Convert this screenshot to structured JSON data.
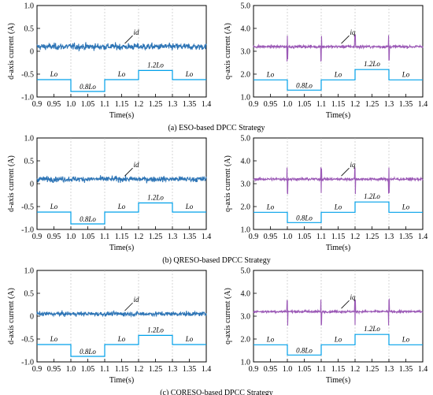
{
  "colors": {
    "d_signal": "#2e75b6",
    "q_signal": "#9b59b6",
    "load_step": "#00a0e9",
    "axis": "#000000"
  },
  "captions": [
    "(a) ESO-based DPCC Strategy",
    "(b) QRESO-based DPCC Strategy",
    "(c) CQRESO-based DPCC Strategy"
  ],
  "chart_data": [
    {
      "type": "line",
      "panel": "a-d",
      "xlabel": "Time(s)",
      "ylabel": "d-axis current (A)",
      "xlim": [
        0.9,
        1.4
      ],
      "ylim": [
        -1.0,
        1.0
      ],
      "xticks": [
        "0.9",
        "0.95",
        "1.0",
        "1.05",
        "1.1",
        "1.15",
        "1.2",
        "1.25",
        "1.3",
        "1.35",
        "1.4"
      ],
      "yticks": [
        "1.0",
        "0.5",
        "0",
        "-0.5",
        "-1.0"
      ],
      "series": [
        {
          "name": "i_d",
          "mean": 0.1,
          "noise": 0.06
        }
      ],
      "load_steps": [
        {
          "x": [
            0.9,
            1.0
          ],
          "y": -0.62
        },
        {
          "x": [
            1.0,
            1.1
          ],
          "y": -0.88
        },
        {
          "x": [
            1.1,
            1.2
          ],
          "y": -0.62
        },
        {
          "x": [
            1.2,
            1.3
          ],
          "y": -0.42
        },
        {
          "x": [
            1.3,
            1.4
          ],
          "y": -0.62
        }
      ],
      "step_labels": [
        "Lo",
        "0.8Lo",
        "Lo",
        "1.2Lo",
        "Lo"
      ],
      "annotation": "id"
    },
    {
      "type": "line",
      "panel": "a-q",
      "xlabel": "Time(s)",
      "ylabel": "q-axis current (A)",
      "xlim": [
        0.9,
        1.4
      ],
      "ylim": [
        1.0,
        5.0
      ],
      "xticks": [
        "0.9",
        "0.95",
        "1.0",
        "1.05",
        "1.1",
        "1.15",
        "1.2",
        "1.25",
        "1.3",
        "1.35",
        "1.4"
      ],
      "yticks": [
        "5.0",
        "4.0",
        "3.0",
        "2.0",
        "1.0"
      ],
      "series": [
        {
          "name": "i_q",
          "mean": 3.2,
          "noise": 0.05
        }
      ],
      "load_steps": [
        {
          "x": [
            0.9,
            1.0
          ],
          "y": 1.75
        },
        {
          "x": [
            1.0,
            1.1
          ],
          "y": 1.3
        },
        {
          "x": [
            1.1,
            1.2
          ],
          "y": 1.75
        },
        {
          "x": [
            1.2,
            1.3
          ],
          "y": 2.2
        },
        {
          "x": [
            1.3,
            1.4
          ],
          "y": 1.75
        }
      ],
      "step_labels": [
        "Lo",
        "0.8Lo",
        "Lo",
        "1.2Lo",
        "Lo"
      ],
      "annotation": "iq"
    },
    {
      "type": "line",
      "panel": "b-d",
      "xlabel": "Time(s)",
      "ylabel": "d-axis current (A)",
      "xlim": [
        0.9,
        1.4
      ],
      "ylim": [
        -1.0,
        1.0
      ],
      "xticks": [
        "0.9",
        "0.95",
        "1.0",
        "1.05",
        "1.1",
        "1.15",
        "1.2",
        "1.25",
        "1.3",
        "1.35",
        "1.4"
      ],
      "yticks": [
        "1.0",
        "0.5",
        "0",
        "-0.5",
        "-1.0"
      ],
      "series": [
        {
          "name": "i_d",
          "mean": 0.1,
          "noise": 0.05
        }
      ],
      "load_steps": [
        {
          "x": [
            0.9,
            1.0
          ],
          "y": -0.62
        },
        {
          "x": [
            1.0,
            1.1
          ],
          "y": -0.88
        },
        {
          "x": [
            1.1,
            1.2
          ],
          "y": -0.62
        },
        {
          "x": [
            1.2,
            1.3
          ],
          "y": -0.42
        },
        {
          "x": [
            1.3,
            1.4
          ],
          "y": -0.62
        }
      ],
      "step_labels": [
        "Lo",
        "0.8Lo",
        "Lo",
        "1.2Lo",
        "Lo"
      ],
      "annotation": "id"
    },
    {
      "type": "line",
      "panel": "b-q",
      "xlabel": "Time(s)",
      "ylabel": "q-axis current (A)",
      "xlim": [
        0.9,
        1.4
      ],
      "ylim": [
        1.0,
        5.0
      ],
      "xticks": [
        "0.9",
        "0.95",
        "1.0",
        "1.05",
        "1.1",
        "1.15",
        "1.2",
        "1.25",
        "1.3",
        "1.35",
        "1.4"
      ],
      "yticks": [
        "5.0",
        "4.0",
        "3.0",
        "2.0",
        "1.0"
      ],
      "series": [
        {
          "name": "i_q",
          "mean": 3.2,
          "noise": 0.05
        }
      ],
      "load_steps": [
        {
          "x": [
            0.9,
            1.0
          ],
          "y": 1.75
        },
        {
          "x": [
            1.0,
            1.1
          ],
          "y": 1.3
        },
        {
          "x": [
            1.1,
            1.2
          ],
          "y": 1.75
        },
        {
          "x": [
            1.2,
            1.3
          ],
          "y": 2.2
        },
        {
          "x": [
            1.3,
            1.4
          ],
          "y": 1.75
        }
      ],
      "step_labels": [
        "Lo",
        "0.8Lo",
        "Lo",
        "1.2Lo",
        "Lo"
      ],
      "annotation": "iq"
    },
    {
      "type": "line",
      "panel": "c-d",
      "xlabel": "Time(s)",
      "ylabel": "d-axis current (A)",
      "xlim": [
        0.9,
        1.4
      ],
      "ylim": [
        -1.0,
        1.0
      ],
      "xticks": [
        "0.9",
        "0.95",
        "1.0",
        "1.05",
        "1.1",
        "1.15",
        "1.2",
        "1.25",
        "1.3",
        "1.35",
        "1.4"
      ],
      "yticks": [
        "1.0",
        "0.5",
        "0",
        "-0.5",
        "-1.0"
      ],
      "series": [
        {
          "name": "i_d",
          "mean": 0.05,
          "noise": 0.04
        }
      ],
      "load_steps": [
        {
          "x": [
            0.9,
            1.0
          ],
          "y": -0.62
        },
        {
          "x": [
            1.0,
            1.1
          ],
          "y": -0.88
        },
        {
          "x": [
            1.1,
            1.2
          ],
          "y": -0.62
        },
        {
          "x": [
            1.2,
            1.3
          ],
          "y": -0.42
        },
        {
          "x": [
            1.3,
            1.4
          ],
          "y": -0.62
        }
      ],
      "step_labels": [
        "Lo",
        "0.8Lo",
        "Lo",
        "1.2Lo",
        "Lo"
      ],
      "annotation": "id"
    },
    {
      "type": "line",
      "panel": "c-q",
      "xlabel": "Time(s)",
      "ylabel": "q-axis current (A)",
      "xlim": [
        0.9,
        1.4
      ],
      "ylim": [
        1.0,
        5.0
      ],
      "xticks": [
        "0.9",
        "0.95",
        "1.0",
        "1.05",
        "1.1",
        "1.15",
        "1.2",
        "1.25",
        "1.3",
        "1.35",
        "1.4"
      ],
      "yticks": [
        "5.0",
        "4.0",
        "3.0",
        "2.0",
        "1.0"
      ],
      "series": [
        {
          "name": "i_q",
          "mean": 3.2,
          "noise": 0.04
        }
      ],
      "load_steps": [
        {
          "x": [
            0.9,
            1.0
          ],
          "y": 1.75
        },
        {
          "x": [
            1.0,
            1.1
          ],
          "y": 1.3
        },
        {
          "x": [
            1.1,
            1.2
          ],
          "y": 1.75
        },
        {
          "x": [
            1.2,
            1.3
          ],
          "y": 2.2
        },
        {
          "x": [
            1.3,
            1.4
          ],
          "y": 1.75
        }
      ],
      "step_labels": [
        "Lo",
        "0.8Lo",
        "Lo",
        "1.2Lo",
        "Lo"
      ],
      "annotation": "iq"
    }
  ]
}
